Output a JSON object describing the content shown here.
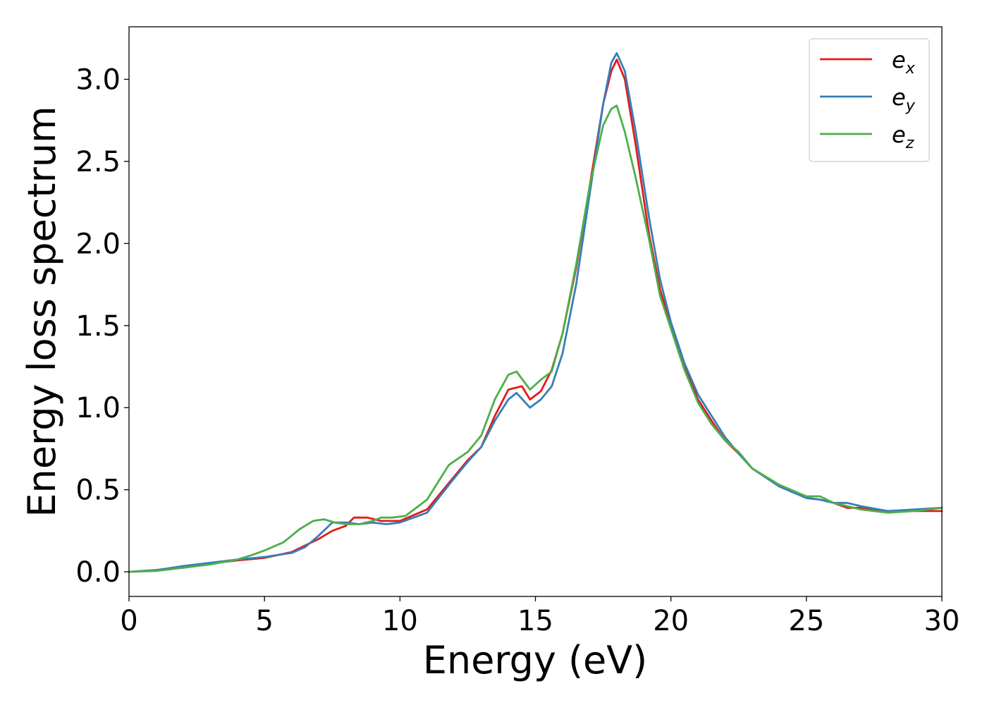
{
  "chart_data": {
    "type": "line",
    "title": "",
    "xlabel": "Energy (eV)",
    "ylabel": "Energy loss spectrum",
    "xlim": [
      0,
      30
    ],
    "ylim": [
      -0.15,
      3.32
    ],
    "xticks": [
      0,
      5,
      10,
      15,
      20,
      25,
      30
    ],
    "xtick_labels": [
      "0",
      "5",
      "10",
      "15",
      "20",
      "25",
      "30"
    ],
    "yticks": [
      0.0,
      0.5,
      1.0,
      1.5,
      2.0,
      2.5,
      3.0
    ],
    "ytick_labels": [
      "0.0",
      "0.5",
      "1.0",
      "1.5",
      "2.0",
      "2.5",
      "3.0"
    ],
    "grid": false,
    "legend_position": "top-right",
    "series": [
      {
        "name": "e_x",
        "label_base": "e",
        "label_sub": "x",
        "color": "#e41a1c",
        "x": [
          0,
          1,
          2,
          3,
          4,
          5,
          6,
          6.5,
          7,
          7.5,
          8,
          8.3,
          8.8,
          9.3,
          10,
          11,
          12,
          12.5,
          13,
          13.5,
          14,
          14.5,
          14.8,
          15.2,
          15.6,
          16,
          16.5,
          17,
          17.5,
          17.8,
          18,
          18.3,
          18.7,
          19.2,
          19.6,
          20,
          20.5,
          21,
          21.5,
          22,
          22.5,
          23,
          24,
          25,
          25.5,
          26,
          26.5,
          27,
          28,
          29,
          30
        ],
        "values": [
          0,
          0.01,
          0.03,
          0.05,
          0.07,
          0.085,
          0.12,
          0.16,
          0.2,
          0.25,
          0.28,
          0.33,
          0.33,
          0.31,
          0.31,
          0.38,
          0.58,
          0.68,
          0.76,
          0.95,
          1.11,
          1.13,
          1.05,
          1.1,
          1.23,
          1.45,
          1.85,
          2.35,
          2.85,
          3.05,
          3.12,
          3.0,
          2.6,
          2.05,
          1.72,
          1.5,
          1.25,
          1.05,
          0.92,
          0.8,
          0.72,
          0.63,
          0.52,
          0.45,
          0.44,
          0.42,
          0.39,
          0.39,
          0.37,
          0.37,
          0.37
        ]
      },
      {
        "name": "e_y",
        "label_base": "e",
        "label_sub": "y",
        "color": "#377eb8",
        "x": [
          0,
          1,
          2,
          3,
          4,
          5,
          6,
          6.5,
          7,
          7.5,
          8,
          8.5,
          9,
          9.5,
          10,
          11,
          12,
          12.5,
          13,
          13.5,
          14,
          14.3,
          14.8,
          15.2,
          15.6,
          16,
          16.5,
          17,
          17.5,
          17.8,
          18,
          18.3,
          18.7,
          19.2,
          19.6,
          20,
          20.5,
          21,
          21.5,
          22,
          22.5,
          23,
          24,
          25,
          25.5,
          26,
          26.5,
          27,
          28,
          29,
          30
        ],
        "values": [
          0,
          0.01,
          0.035,
          0.055,
          0.075,
          0.09,
          0.115,
          0.15,
          0.22,
          0.3,
          0.3,
          0.29,
          0.3,
          0.29,
          0.3,
          0.36,
          0.57,
          0.67,
          0.76,
          0.92,
          1.05,
          1.09,
          1.0,
          1.05,
          1.13,
          1.33,
          1.75,
          2.3,
          2.85,
          3.1,
          3.16,
          3.05,
          2.68,
          2.15,
          1.78,
          1.52,
          1.27,
          1.08,
          0.95,
          0.82,
          0.72,
          0.63,
          0.52,
          0.45,
          0.44,
          0.42,
          0.42,
          0.4,
          0.37,
          0.38,
          0.39
        ]
      },
      {
        "name": "e_z",
        "label_base": "e",
        "label_sub": "z",
        "color": "#4daf4a",
        "x": [
          0,
          1,
          2,
          3,
          4,
          4.5,
          5,
          5.7,
          6.3,
          6.8,
          7.2,
          7.6,
          8,
          8.5,
          9,
          9.3,
          9.7,
          10.2,
          11,
          11.8,
          12.5,
          13,
          13.5,
          14,
          14.3,
          14.8,
          15.2,
          15.6,
          16,
          16.5,
          17,
          17.5,
          17.8,
          18,
          18.3,
          18.7,
          19.2,
          19.6,
          20,
          20.5,
          21,
          21.5,
          22,
          22.5,
          23,
          24,
          25,
          25.5,
          26,
          26.5,
          27,
          28,
          29,
          30
        ],
        "values": [
          0,
          0.005,
          0.025,
          0.045,
          0.075,
          0.1,
          0.13,
          0.18,
          0.26,
          0.31,
          0.32,
          0.3,
          0.29,
          0.29,
          0.31,
          0.33,
          0.33,
          0.34,
          0.44,
          0.65,
          0.73,
          0.83,
          1.05,
          1.2,
          1.22,
          1.11,
          1.17,
          1.22,
          1.45,
          1.87,
          2.35,
          2.72,
          2.82,
          2.84,
          2.68,
          2.4,
          2.02,
          1.68,
          1.48,
          1.23,
          1.03,
          0.9,
          0.8,
          0.73,
          0.63,
          0.53,
          0.46,
          0.46,
          0.42,
          0.4,
          0.38,
          0.36,
          0.37,
          0.39
        ]
      }
    ]
  }
}
